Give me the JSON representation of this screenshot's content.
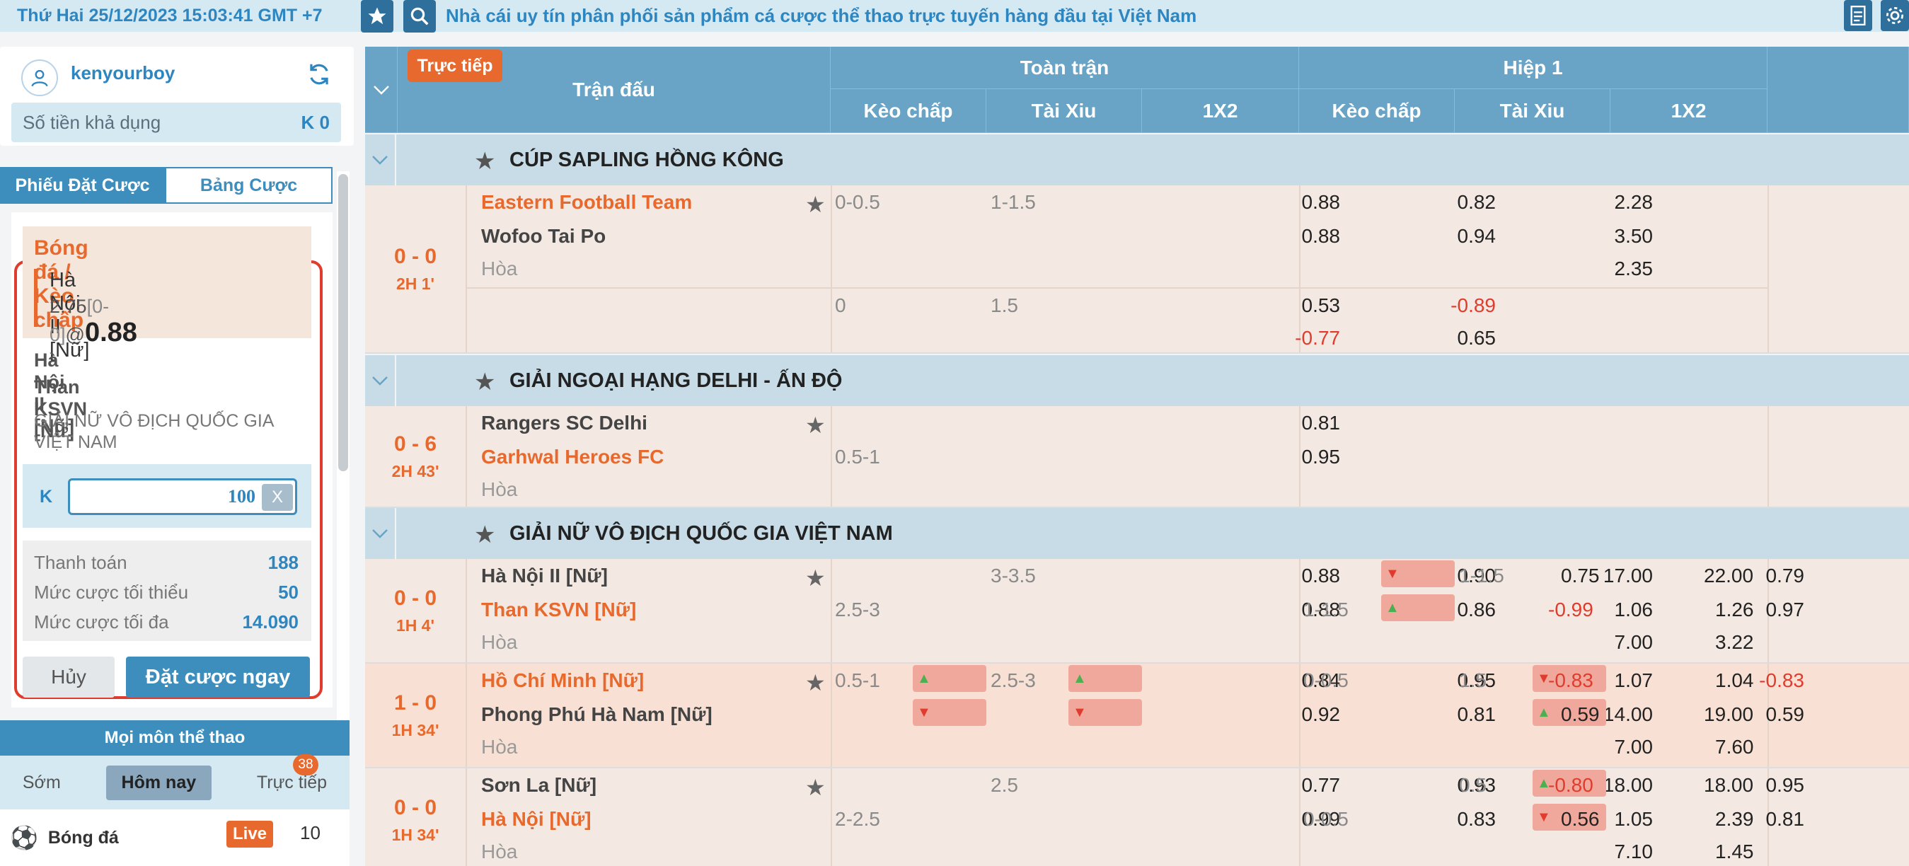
{
  "header": {
    "clock": "Thứ Hai 25/12/2023 15:03:41 GMT +7",
    "marquee": "Nhà cái uy tín phân phối sản phẩm cá cược thể thao trực tuyến hàng đầu tại Việt Nam"
  },
  "account": {
    "username": "kenyourboy",
    "balance_label": "Số tiền khả dụng",
    "balance_value": "K 0"
  },
  "tabs": {
    "slip": "Phiếu Đặt Cược",
    "bets": "Bảng Cược"
  },
  "betslip": {
    "sport_market": "Bóng đá / Kèo chấp",
    "pick_team": "Hà Nội II [Nữ]",
    "pick_hdp": "2.75",
    "pick_score": "[0-0]",
    "pick_at": "@",
    "pick_price": "0.88",
    "home": "Hà Nội II [Nữ]",
    "away": "Than KSVN [Nữ]",
    "league": "GIẢI NỮ VÔ ĐỊCH QUỐC GIA VIỆT NAM",
    "stake_currency": "K",
    "stake_value": "100",
    "clear_label": "X",
    "payout_label": "Thanh toán",
    "payout_value": "188",
    "min_label": "Mức cược tối thiểu",
    "min_value": "50",
    "max_label": "Mức cược tối đa",
    "max_value": "14.090",
    "cancel_label": "Hủy",
    "place_label": "Đặt cược ngay"
  },
  "sports_nav": {
    "title": "Mọi môn thể thao",
    "filters": [
      "Sớm",
      "Hôm nay",
      "Trực tiếp"
    ],
    "live_badge": "38",
    "sport_name": "Bóng đá",
    "live_label": "Live",
    "sport_count": "10"
  },
  "table_head": {
    "live_tag": "Trực tiếp",
    "match": "Trận đấu",
    "full_time": "Toàn trận",
    "first_half": "Hiệp 1",
    "hdp": "Kèo chấp",
    "ou": "Tài Xiu",
    "x12": "1X2"
  },
  "leagues": [
    "CÚP SAPLING HỒNG KÔNG",
    "GIẢI NGOẠI HẠNG DELHI - ẤN ĐỘ",
    "GIẢI NỮ VÔ ĐỊCH QUỐC GIA VIỆT NAM"
  ],
  "draw_label": "Hòa",
  "matches": [
    {
      "score": "0 - 0",
      "time": "2H 1'",
      "home": "Eastern Football Team",
      "away": "Wofoo Tai Po",
      "ft_hdp_line": "0-0.5",
      "ft_hdp_h": "0.88",
      "ft_hdp_a": "0.88",
      "ft_ou_line": "1-1.5",
      "ft_ou_o": "0.82",
      "ft_ou_u": "0.94",
      "x1": "2.28",
      "x2": "3.50",
      "xd": "2.35",
      "alt_hdp_line": "0",
      "alt_hdp_h": "0.53",
      "alt_hdp_a": "-0.77",
      "alt_ou_line": "1.5",
      "alt_ou_o": "-0.89",
      "alt_ou_u": "0.65"
    },
    {
      "score": "0 - 6",
      "time": "2H 43'",
      "home": "Rangers SC Delhi",
      "away": "Garhwal Heroes FC",
      "ft_hdp_line": "0.5-1",
      "ft_hdp_h": "0.81",
      "ft_hdp_a": "0.95"
    },
    {
      "score": "0 - 0",
      "time": "1H 4'",
      "home": "Hà Nội II [Nữ]",
      "away": "Than KSVN [Nữ]",
      "ft_hdp_line": "2.5-3",
      "ft_hdp_h": "0.88",
      "ft_hdp_a": "0.88",
      "ft_ou_line": "3-3.5",
      "ft_ou_o": "0.90",
      "ft_ou_u": "0.86",
      "x1": "17.00",
      "x2": "1.06",
      "xd": "7.00",
      "h1_hdp_line": "1-1.5",
      "h1_hdp_h": "0.79",
      "h1_hdp_a": "0.97",
      "h1_ou_line": "1-1.5",
      "h1_ou_o": "0.75",
      "h1_ou_u": "-0.99",
      "h1_x1": "22.00",
      "h1_x2": "1.26",
      "h1_xd": "3.22"
    },
    {
      "score": "1 - 0",
      "time": "1H 34'",
      "home": "Hồ Chí Minh [Nữ]",
      "away": "Phong Phú Hà Nam [Nữ]",
      "ft_hdp_line": "0.5-1",
      "ft_hdp_h": "0.84",
      "ft_hdp_a": "0.92",
      "ft_ou_line": "2.5-3",
      "ft_ou_o": "0.95",
      "ft_ou_u": "0.81",
      "x1": "1.07",
      "x2": "14.00",
      "xd": "7.00",
      "h1_hdp_line": "0-0.5",
      "h1_hdp_h": "-0.83",
      "h1_hdp_a": "0.59",
      "h1_ou_line": "1.5",
      "h1_ou_o": "-0.83",
      "h1_ou_u": "0.59",
      "h1_x1": "1.04",
      "h1_x2": "19.00",
      "h1_xd": "7.60"
    },
    {
      "score": "0 - 0",
      "time": "1H 34'",
      "home": "Sơn La [Nữ]",
      "away": "Hà Nội [Nữ]",
      "ft_hdp_line": "2-2.5",
      "ft_hdp_h": "0.77",
      "ft_hdp_a": "0.99",
      "ft_ou_line": "2.5",
      "ft_ou_o": "0.93",
      "ft_ou_u": "0.83",
      "x1": "18.00",
      "x2": "1.05",
      "xd": "7.10",
      "h1_hdp_line": "0-0.5",
      "h1_hdp_h": "0.95",
      "h1_hdp_a": "0.81",
      "h1_ou_line": "0.5",
      "h1_ou_o": "-0.80",
      "h1_ou_u": "0.56",
      "h1_x1": "18.00",
      "h1_x2": "2.39",
      "h1_xd": "1.45"
    }
  ]
}
